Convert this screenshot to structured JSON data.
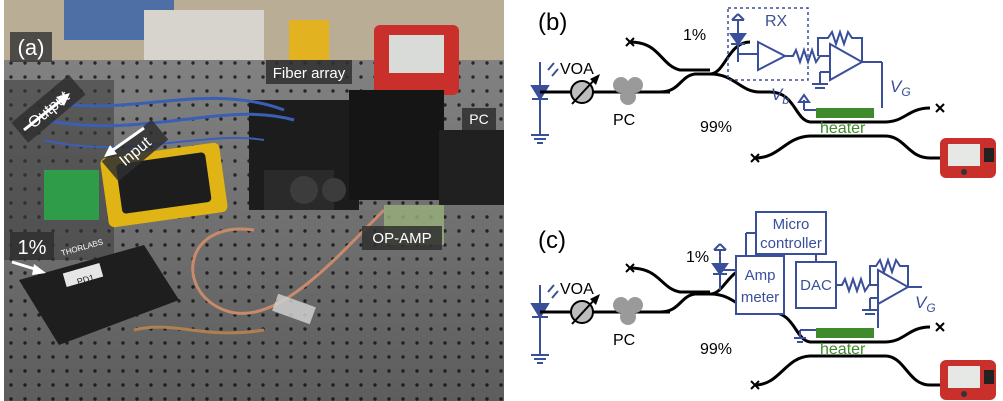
{
  "photo": {
    "panel_label": "(a)",
    "labels": {
      "output": "Output",
      "input": "Input",
      "fiber_array": "Fiber array",
      "pc": "PC",
      "op_amp": "OP-AMP",
      "one_percent": "1%",
      "detector_brand": "THORLABS",
      "detector_model": "PD1"
    }
  },
  "diagram_b": {
    "panel_label": "(b)",
    "voa": "VOA",
    "pc": "PC",
    "tap_1": "1%",
    "tap_99": "99%",
    "rx": "RX",
    "vb": "V",
    "vb_sub": "b",
    "vg": "V",
    "vg_sub": "G",
    "heater": "heater"
  },
  "diagram_c": {
    "panel_label": "(c)",
    "voa": "VOA",
    "pc": "PC",
    "tap_1": "1%",
    "tap_99": "99%",
    "microcontroller_line1": "Micro",
    "microcontroller_line2": "controller",
    "ampmeter_line1": "Amp",
    "ampmeter_line2": "meter",
    "dac": "DAC",
    "vg": "V",
    "vg_sub": "G",
    "heater": "heater"
  },
  "colors": {
    "waveguide": "#000000",
    "circuit": "#3a4f9a",
    "heater": "#3f8a2a",
    "pc_ball": "#9a9a9a",
    "label": "#3a4f9a"
  }
}
